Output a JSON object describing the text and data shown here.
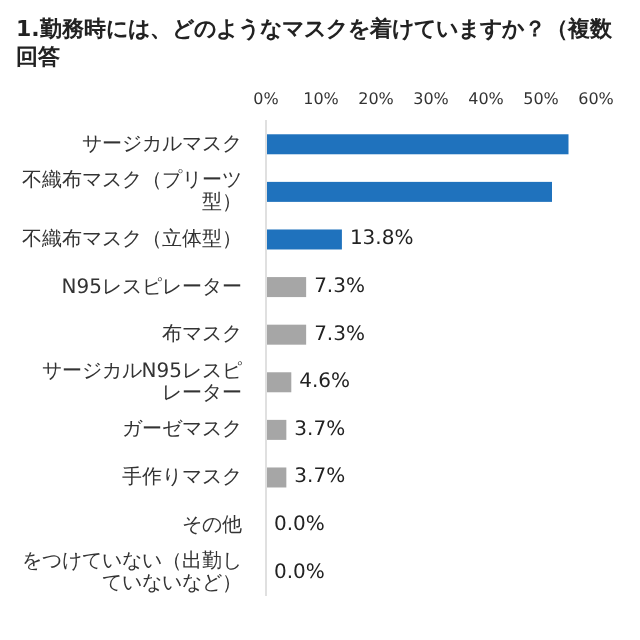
{
  "chart_data": {
    "type": "bar",
    "orientation": "horizontal",
    "title": "1.勤務時には、どのようなマスクを着けていますか？（複数回答",
    "categories": [
      "サージカルマスク",
      "不織布マスク（プリーツ型）",
      "不織布マスク（立体型）",
      "N95レスピレーター",
      "布マスク",
      "サージカルN95レスピレーター",
      "ガーゼマスク",
      "手作りマスク",
      "その他",
      "をつけていない（出勤していないなど）"
    ],
    "values": [
      55,
      52,
      13.8,
      7.3,
      7.3,
      4.6,
      3.7,
      3.7,
      0.0,
      0.0
    ],
    "colors": [
      "#1f72bd",
      "#1f72bd",
      "#1f72bd",
      "#a6a6a6",
      "#a6a6a6",
      "#a6a6a6",
      "#a6a6a6",
      "#a6a6a6",
      "#a6a6a6",
      "#a6a6a6"
    ],
    "value_labels": [
      null,
      null,
      "13.8%",
      "7.3%",
      "7.3%",
      "4.6%",
      "3.7%",
      "3.7%",
      "0.0%",
      "0.0%"
    ],
    "xlim": [
      0,
      60
    ],
    "xticks": [
      {
        "value": 0,
        "label": "0%"
      },
      {
        "value": 10,
        "label": "10%"
      },
      {
        "value": 20,
        "label": "20%"
      },
      {
        "value": 30,
        "label": "30%"
      },
      {
        "value": 40,
        "label": "40%"
      },
      {
        "value": 50,
        "label": "50%"
      },
      {
        "value": 60,
        "label": "60%"
      }
    ],
    "grid": false,
    "legend": false
  }
}
